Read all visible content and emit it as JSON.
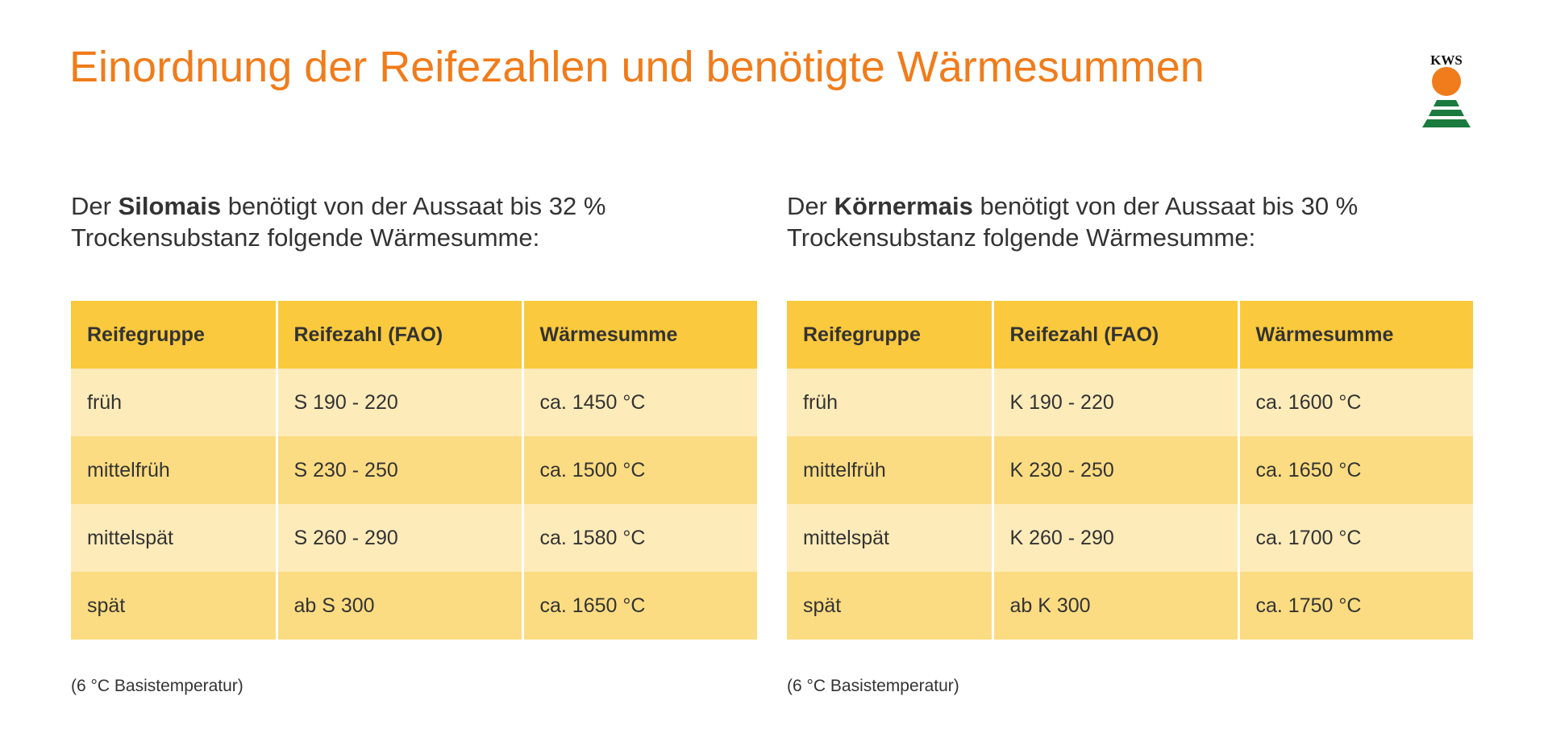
{
  "header": {
    "title": "Einordnung der Reifezahlen und benötigte Wärmesummen",
    "logo": "KWS"
  },
  "panels": [
    {
      "intro": {
        "pre": "Der ",
        "bold": "Silomais",
        "post": " benötigt von der Aussaat bis 32 %",
        "line2": "Trockensubstanz folgende Wärmesumme:"
      },
      "table": {
        "headers": [
          "Reifegruppe",
          "Reifezahl (FAO)",
          "Wärmesumme"
        ],
        "rows": [
          [
            "früh",
            "S 190 - 220",
            "ca. 1450 °C"
          ],
          [
            "mittelfrüh",
            "S 230 - 250",
            "ca. 1500 °C"
          ],
          [
            "mittelspät",
            "S 260 - 290",
            "ca. 1580 °C"
          ],
          [
            "spät",
            "ab S 300",
            "ca. 1650 °C"
          ]
        ]
      },
      "footnote": "(6 °C Basistemperatur)"
    },
    {
      "intro": {
        "pre": "Der ",
        "bold": "Körnermais",
        "post": " benötigt von der Aussaat bis 30 %",
        "line2": "Trockensubstanz folgende Wärmesumme:"
      },
      "table": {
        "headers": [
          "Reifegruppe",
          "Reifezahl (FAO)",
          "Wärmesumme"
        ],
        "rows": [
          [
            "früh",
            "K 190 - 220",
            "ca. 1600 °C"
          ],
          [
            "mittelfrüh",
            "K 230 - 250",
            "ca. 1650 °C"
          ],
          [
            "mittelspät",
            "K 260 - 290",
            "ca. 1700 °C"
          ],
          [
            "spät",
            "ab K 300",
            "ca. 1750 °C"
          ]
        ]
      },
      "footnote": "(6 °C Basistemperatur)"
    }
  ]
}
